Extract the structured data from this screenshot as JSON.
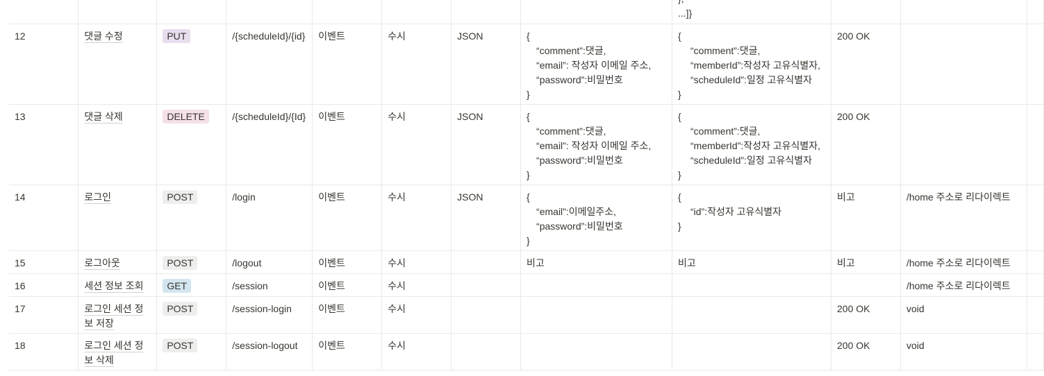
{
  "rows": [
    {
      "num": "",
      "name": "",
      "method": "",
      "method_class": "",
      "url": "",
      "type": "",
      "freq": "",
      "format": "",
      "request": [],
      "response": [
        "},",
        "...]}"
      ],
      "status": "",
      "note": ""
    },
    {
      "num": "12",
      "name": "댓글 수정",
      "method": "PUT",
      "method_class": "t-put",
      "url": "/{scheduleId}/{id}",
      "type": "이벤트",
      "freq": "수시",
      "format": "JSON",
      "request": [
        "{",
        "“comment”:댓글,",
        "“email”: 작성자 이메일 주소,",
        "“password”:비밀번호",
        "}"
      ],
      "response": [
        "{",
        "“comment”:댓글,",
        "“memberId”:작성자 고유식별자,",
        "“scheduleId”:일정 고유식별자",
        "}"
      ],
      "status": "200 OK",
      "note": ""
    },
    {
      "num": "13",
      "name": "댓글 삭제",
      "method": "DELETE",
      "method_class": "t-delete",
      "url": "/{scheduleId}/{Id}",
      "type": "이벤트",
      "freq": "수시",
      "format": "JSON",
      "request": [
        "{",
        "“comment”:댓글,",
        "“email”: 작성자 이메일 주소,",
        "“password”:비밀번호",
        "}"
      ],
      "response": [
        "{",
        "“comment”:댓글,",
        "“memberId”:작성자 고유식별자,",
        "“scheduleId”:일정 고유식별자",
        "}"
      ],
      "status": "200 OK",
      "note": ""
    },
    {
      "num": "14",
      "name": "로그인",
      "method": "POST",
      "method_class": "t-post",
      "url": "/login",
      "type": "이벤트",
      "freq": "수시",
      "format": "JSON",
      "request": [
        "{",
        "“email”:이메일주소,",
        "“password”:비밀번호",
        "}"
      ],
      "response": [
        "{",
        "“id”:작성자 고유식별자",
        "}"
      ],
      "status": "비고",
      "note": "/home 주소로 리다이렉트"
    },
    {
      "num": "15",
      "name": "로그아웃",
      "method": "POST",
      "method_class": "t-post",
      "url": "/logout",
      "type": "이벤트",
      "freq": "수시",
      "format": "",
      "request": [
        "비고"
      ],
      "response": [
        "비고"
      ],
      "status": "비고",
      "note": "/home 주소로 리다이렉트"
    },
    {
      "num": "16",
      "name": "세션 정보 조회",
      "method": "GET",
      "method_class": "t-get",
      "url": "/session",
      "type": "이벤트",
      "freq": "수시",
      "format": "",
      "request": [],
      "response": [],
      "status": "",
      "note": "/home 주소로 리다이렉트"
    },
    {
      "num": "17",
      "name": "로그인 세션 정보 저장",
      "method": "POST",
      "method_class": "t-post",
      "url": "/session-login",
      "type": "이벤트",
      "freq": "수시",
      "format": "",
      "request": [],
      "response": [],
      "status": "200 OK",
      "note": "void"
    },
    {
      "num": "18",
      "name": "로그인 세션 정보 삭제",
      "method": "POST",
      "method_class": "t-post",
      "url": "/session-logout",
      "type": "이벤트",
      "freq": "수시",
      "format": "",
      "request": [],
      "response": [],
      "status": "200 OK",
      "note": "void"
    }
  ]
}
